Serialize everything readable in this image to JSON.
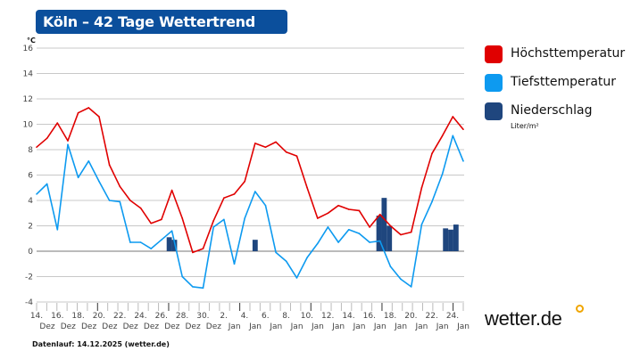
{
  "header": {
    "title": "Köln – 42 Tage Wettertrend"
  },
  "footer": {
    "data_run": "Datenlauf: 14.12.2025 (wetter.de)"
  },
  "logo": {
    "text": "wetter.de"
  },
  "legend": {
    "items": [
      {
        "label": "Höchsttemperatur",
        "color": "#e00000"
      },
      {
        "label": "Tiefsttemperatur",
        "color": "#0d9af0"
      },
      {
        "label": "Niederschlag",
        "color": "#1f467e",
        "unit": "Liter/m²"
      }
    ]
  },
  "chart_data": {
    "type": "line",
    "title": "Köln – 42 Tage Wettertrend",
    "ylabel": "°C",
    "ylim": [
      -4,
      16
    ],
    "yticks": [
      16,
      14,
      12,
      10,
      8,
      6,
      4,
      2,
      0,
      -2,
      -4
    ],
    "grid": true,
    "legend_position": "right",
    "x_tick_labels": [
      {
        "day": "14.",
        "month": "Dez"
      },
      {
        "day": "16.",
        "month": "Dez"
      },
      {
        "day": "18.",
        "month": "Dez"
      },
      {
        "day": "20.",
        "month": "Dez"
      },
      {
        "day": "22.",
        "month": "Dez"
      },
      {
        "day": "24.",
        "month": "Dez"
      },
      {
        "day": "26.",
        "month": "Dez"
      },
      {
        "day": "28.",
        "month": "Dez"
      },
      {
        "day": "30.",
        "month": "Dez"
      },
      {
        "day": "2.",
        "month": "Jan"
      },
      {
        "day": "4.",
        "month": "Jan"
      },
      {
        "day": "6.",
        "month": "Jan"
      },
      {
        "day": "8.",
        "month": "Jan"
      },
      {
        "day": "10.",
        "month": "Jan"
      },
      {
        "day": "12.",
        "month": "Jan"
      },
      {
        "day": "14.",
        "month": "Jan"
      },
      {
        "day": "16.",
        "month": "Jan"
      },
      {
        "day": "18.",
        "month": "Jan"
      },
      {
        "day": "20.",
        "month": "Jan"
      },
      {
        "day": "22.",
        "month": "Jan"
      },
      {
        "day": "24.",
        "month": "Jan"
      }
    ],
    "series": [
      {
        "name": "Höchsttemperatur",
        "color": "#e00000",
        "values": [
          8.2,
          8.9,
          10.1,
          8.7,
          10.9,
          11.3,
          10.6,
          6.8,
          5.1,
          4.0,
          3.4,
          2.2,
          2.5,
          4.8,
          2.6,
          -0.1,
          0.2,
          2.4,
          4.2,
          4.5,
          5.5,
          8.5,
          8.2,
          8.6,
          7.8,
          7.5,
          5.0,
          2.6,
          3.0,
          3.6,
          3.3,
          3.2,
          1.9,
          2.9,
          2.0,
          1.3,
          1.5,
          5.0,
          7.7,
          9.1,
          10.6,
          9.6
        ]
      },
      {
        "name": "Tiefsttemperatur",
        "color": "#0d9af0",
        "values": [
          4.5,
          5.3,
          1.7,
          8.4,
          5.8,
          7.1,
          5.5,
          4.0,
          3.9,
          0.7,
          0.7,
          0.2,
          0.9,
          1.6,
          -2.0,
          -2.8,
          -2.9,
          1.9,
          2.5,
          -1.0,
          2.6,
          4.7,
          3.6,
          -0.1,
          -0.8,
          -2.1,
          -0.5,
          0.6,
          1.9,
          0.7,
          1.7,
          1.4,
          0.7,
          0.8,
          -1.2,
          -2.2,
          -2.8,
          2.1,
          3.9,
          6.1,
          9.1,
          7.1
        ]
      },
      {
        "name": "Niederschlag",
        "color": "#1f467e",
        "type": "bar",
        "unit": "Liter/m²",
        "bars": [
          {
            "date": "27. Dez",
            "values": [
              1.1,
              0.9
            ]
          },
          {
            "date": "4. Jan",
            "values": [
              0.9
            ]
          },
          {
            "date": "17. Jan",
            "values": [
              2.8,
              4.2,
              2.0
            ]
          },
          {
            "date": "23. Jan",
            "values": [
              1.8,
              1.7,
              2.1
            ]
          }
        ]
      }
    ]
  }
}
